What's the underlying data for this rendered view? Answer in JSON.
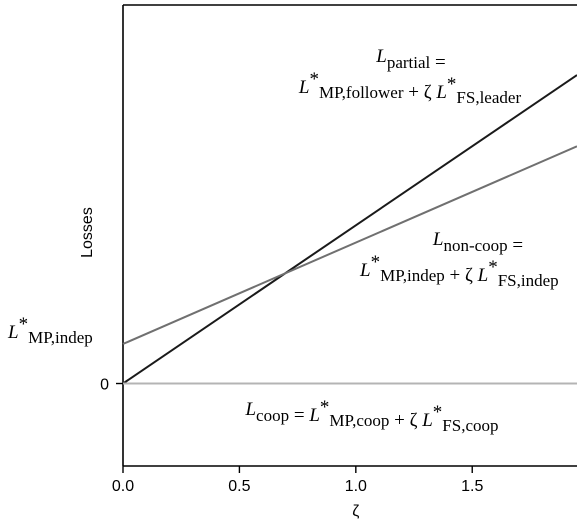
{
  "chart_data": {
    "type": "line",
    "xlabel": "ζ",
    "ylabel": "Losses",
    "xlim": [
      0,
      1.95
    ],
    "ylim": [
      -0.73,
      3.35
    ],
    "xticks": [
      {
        "value": 0.0,
        "label": "0.0"
      },
      {
        "value": 0.5,
        "label": "0.5"
      },
      {
        "value": 1.0,
        "label": "1.0"
      },
      {
        "value": 1.5,
        "label": "1.5"
      }
    ],
    "yticks": [
      {
        "value": 0,
        "label": "0"
      }
    ],
    "ytick_special": {
      "value": 0.35,
      "base": "L",
      "star": "*",
      "sub": "MP,indep"
    },
    "grid": false,
    "series": [
      {
        "key": "partial",
        "color": "#1a1a1a",
        "x": [
          0,
          1.95
        ],
        "y": [
          0,
          2.73
        ],
        "label_line1": {
          "base": "L",
          "sub": "partial",
          "tail": " ="
        },
        "label_line2": [
          {
            "base": "L",
            "star": "*",
            "sub": "MP,follower"
          },
          {
            "op": " + ζ "
          },
          {
            "base": "L",
            "star": "*",
            "sub": "FS,leader"
          }
        ]
      },
      {
        "key": "non_coop",
        "color": "#707070",
        "x": [
          0,
          1.95
        ],
        "y": [
          0.35,
          2.1
        ],
        "label_line1": {
          "base": "L",
          "sub": "non-coop",
          "tail": " ="
        },
        "label_line2": [
          {
            "base": "L",
            "star": "*",
            "sub": "MP,indep"
          },
          {
            "op": " + ζ "
          },
          {
            "base": "L",
            "star": "*",
            "sub": "FS,indep"
          }
        ]
      },
      {
        "key": "coop",
        "color": "#b4b4b4",
        "x": [
          0,
          1.95
        ],
        "y": [
          0,
          0
        ],
        "label_line1": [
          {
            "base": "L",
            "sub": "coop"
          },
          {
            "op": " = "
          },
          {
            "base": "L",
            "star": "*",
            "sub": "MP,coop"
          },
          {
            "op": " + ζ "
          },
          {
            "base": "L",
            "star": "*",
            "sub": "FS,coop"
          }
        ]
      }
    ]
  }
}
